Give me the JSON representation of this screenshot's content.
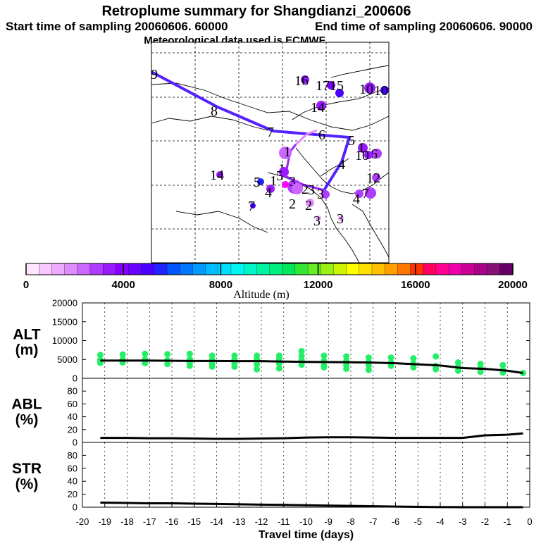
{
  "figure": {
    "title": "Retroplume summary for Shangdianzi_200606",
    "start_label": "Start time of sampling 20060606. 60000",
    "end_label": "End time of sampling 20060606. 90000",
    "met_label": "Meteorological data used is ECMWF"
  },
  "colorbar": {
    "title": "Altitude (m)",
    "min": 0,
    "max": 20000,
    "tick_labels": [
      "0",
      "4000",
      "8000",
      "12000",
      "16000",
      "20000"
    ],
    "colors": [
      "#ffe6ff",
      "#f7c8ff",
      "#eeaaff",
      "#e08cff",
      "#cc66ff",
      "#b03cff",
      "#9a1aff",
      "#8a00ff",
      "#6a00ff",
      "#4a00ff",
      "#2222ff",
      "#0055ff",
      "#0077ff",
      "#0099ff",
      "#00bbff",
      "#00dfff",
      "#00f5f0",
      "#00f5c8",
      "#00f5a0",
      "#00f080",
      "#00e85a",
      "#33e633",
      "#66ee22",
      "#99f011",
      "#ccf500",
      "#ffff00",
      "#ffe000",
      "#ffc000",
      "#ffa000",
      "#ff7700",
      "#ff3300",
      "#ff0060",
      "#ff0090",
      "#ee00aa",
      "#cc0099",
      "#aa0088",
      "#881177",
      "#660066"
    ]
  },
  "map": {
    "track_blue_labels": [
      "9",
      "8",
      "7",
      "6",
      "5",
      "4"
    ],
    "track_purple_labels": [
      "3",
      "2",
      "1"
    ],
    "cluster_labels": [
      {
        "text": "16",
        "color": "#8a1aff"
      },
      {
        "text": "14",
        "color": "#9a1aff"
      },
      {
        "text": "17",
        "color": "#7a00ff"
      },
      {
        "text": "15",
        "color": "#4a00ff"
      },
      {
        "text": "10",
        "color": "#9a1aff"
      },
      {
        "text": "10",
        "color": "#4a00ff"
      },
      {
        "text": "14",
        "color": "#9a1aff"
      },
      {
        "text": "1",
        "color": "#9a1aff"
      },
      {
        "text": "6",
        "color": "#b03cff"
      },
      {
        "text": "1",
        "color": "#cc66ff"
      },
      {
        "text": "10",
        "color": "#9a1aff"
      },
      {
        "text": "12",
        "color": "#b03cff"
      },
      {
        "text": "5",
        "color": "#2222ff"
      },
      {
        "text": "1",
        "color": "#9a1aff"
      },
      {
        "text": "4",
        "color": "#9a1aff"
      },
      {
        "text": "3",
        "color": "#b03cff"
      },
      {
        "text": "2",
        "color": "#e08cff"
      },
      {
        "text": "2",
        "color": "#cc66ff"
      },
      {
        "text": "3",
        "color": "#b03cff"
      },
      {
        "text": "4",
        "color": "#b03cff"
      },
      {
        "text": "7",
        "color": "#b03cff"
      },
      {
        "text": "7",
        "color": "#4a00ff"
      },
      {
        "text": "3",
        "color": "#eeaaff"
      },
      {
        "text": "3",
        "color": "#eeaaff"
      },
      {
        "text": "5",
        "color": "#ff00ff"
      }
    ]
  },
  "chart_data": [
    {
      "type": "scatter",
      "panel": "ALT",
      "ylabel": "ALT\n(m)",
      "ylabel_lines": [
        "ALT",
        "(m)"
      ],
      "xlabel": "",
      "xlim": [
        -20,
        0
      ],
      "ylim": [
        0,
        20000
      ],
      "yticks": [
        "0",
        "5000",
        "10000",
        "15000",
        "20000"
      ],
      "line": {
        "x": [
          -19.2,
          -18,
          -17,
          -16,
          -15,
          -14,
          -13,
          -12,
          -11,
          -10,
          -9,
          -8,
          -7,
          -6,
          -5,
          -4,
          -3,
          -2,
          -1,
          -0.3
        ],
        "y": [
          4700,
          4700,
          4700,
          4650,
          4600,
          4600,
          4550,
          4550,
          4450,
          4350,
          4300,
          4250,
          4150,
          4000,
          3700,
          3400,
          2700,
          2500,
          2000,
          1400
        ]
      },
      "points": [
        {
          "x": -19.2,
          "y": 6200
        },
        {
          "x": -19.2,
          "y": 4900
        },
        {
          "x": -19.2,
          "y": 4100
        },
        {
          "x": -18.2,
          "y": 6300
        },
        {
          "x": -18.2,
          "y": 5000
        },
        {
          "x": -18.2,
          "y": 4200
        },
        {
          "x": -17.2,
          "y": 6500
        },
        {
          "x": -17.2,
          "y": 5000
        },
        {
          "x": -17.2,
          "y": 4000
        },
        {
          "x": -16.2,
          "y": 6400
        },
        {
          "x": -16.2,
          "y": 4800
        },
        {
          "x": -16.2,
          "y": 3800
        },
        {
          "x": -15.2,
          "y": 6500
        },
        {
          "x": -15.2,
          "y": 5000
        },
        {
          "x": -15.2,
          "y": 4200
        },
        {
          "x": -15.2,
          "y": 3300
        },
        {
          "x": -14.2,
          "y": 6000
        },
        {
          "x": -14.2,
          "y": 4900
        },
        {
          "x": -14.2,
          "y": 3900
        },
        {
          "x": -14.2,
          "y": 3100
        },
        {
          "x": -13.2,
          "y": 6000
        },
        {
          "x": -13.2,
          "y": 4900
        },
        {
          "x": -13.2,
          "y": 4000
        },
        {
          "x": -13.2,
          "y": 3100
        },
        {
          "x": -12.2,
          "y": 6000
        },
        {
          "x": -12.2,
          "y": 5000
        },
        {
          "x": -12.2,
          "y": 3700
        },
        {
          "x": -12.2,
          "y": 2400
        },
        {
          "x": -11.2,
          "y": 6000
        },
        {
          "x": -11.2,
          "y": 5200
        },
        {
          "x": -11.2,
          "y": 3900
        },
        {
          "x": -11.2,
          "y": 2600
        },
        {
          "x": -10.2,
          "y": 5900
        },
        {
          "x": -10.2,
          "y": 4800
        },
        {
          "x": -10.2,
          "y": 3600
        },
        {
          "x": -10.2,
          "y": 7200
        },
        {
          "x": -9.2,
          "y": 6000
        },
        {
          "x": -9.2,
          "y": 4600
        },
        {
          "x": -9.2,
          "y": 3300
        },
        {
          "x": -9.2,
          "y": 2900
        },
        {
          "x": -8.2,
          "y": 5800
        },
        {
          "x": -8.2,
          "y": 4600
        },
        {
          "x": -8.2,
          "y": 3500
        },
        {
          "x": -8.2,
          "y": 2500
        },
        {
          "x": -7.2,
          "y": 5500
        },
        {
          "x": -7.2,
          "y": 4300
        },
        {
          "x": -7.2,
          "y": 3400
        },
        {
          "x": -7.2,
          "y": 2200
        },
        {
          "x": -6.2,
          "y": 5500
        },
        {
          "x": -6.2,
          "y": 4200
        },
        {
          "x": -6.2,
          "y": 3300
        },
        {
          "x": -5.2,
          "y": 5300
        },
        {
          "x": -5.2,
          "y": 3900
        },
        {
          "x": -5.2,
          "y": 2900
        },
        {
          "x": -4.2,
          "y": 5800
        },
        {
          "x": -4.2,
          "y": 3300
        },
        {
          "x": -4.2,
          "y": 2400
        },
        {
          "x": -3.2,
          "y": 4200
        },
        {
          "x": -3.2,
          "y": 3100
        },
        {
          "x": -3.2,
          "y": 2000
        },
        {
          "x": -2.2,
          "y": 3800
        },
        {
          "x": -2.2,
          "y": 2700
        },
        {
          "x": -2.2,
          "y": 1700
        },
        {
          "x": -1.2,
          "y": 3500
        },
        {
          "x": -1.2,
          "y": 2200
        },
        {
          "x": -1.2,
          "y": 1500
        },
        {
          "x": -0.3,
          "y": 1400
        }
      ]
    },
    {
      "type": "line",
      "panel": "ABL",
      "ylabel": "ABL\n(%)",
      "ylabel_lines": [
        "ABL",
        "(%)"
      ],
      "xlim": [
        -20,
        0
      ],
      "ylim": [
        0,
        100
      ],
      "yticks": [
        "0",
        "20",
        "40",
        "60",
        "80"
      ],
      "x": [
        -19.2,
        -18,
        -17,
        -16,
        -15,
        -14,
        -13,
        -12,
        -11,
        -10,
        -9,
        -8,
        -7,
        -6,
        -5,
        -4,
        -3,
        -2,
        -1,
        -0.3
      ],
      "values": [
        7,
        7,
        6.5,
        6.5,
        6,
        5.5,
        5.5,
        6,
        6.5,
        7.5,
        8,
        8,
        7.5,
        7,
        7,
        7,
        7,
        11,
        12,
        14
      ]
    },
    {
      "type": "line",
      "panel": "STR",
      "ylabel": "STR\n(%)",
      "ylabel_lines": [
        "STR",
        "(%)"
      ],
      "xlabel": "Travel time (days)",
      "xlim": [
        -20,
        0
      ],
      "ylim": [
        0,
        100
      ],
      "yticks": [
        "0",
        "20",
        "40",
        "60",
        "80"
      ],
      "xticks": [
        "-20",
        "-19",
        "-18",
        "-17",
        "-16",
        "-15",
        "-14",
        "-13",
        "-12",
        "-11",
        "-10",
        "-9",
        "-8",
        "-7",
        "-6",
        "-5",
        "-4",
        "-3",
        "-2",
        "-1",
        "0"
      ],
      "x": [
        -19.2,
        -18,
        -17,
        -16,
        -15,
        -14,
        -13,
        -12,
        -11,
        -10,
        -9,
        -8,
        -7,
        -6,
        -5,
        -4,
        -3,
        -2,
        -1,
        -0.3
      ],
      "values": [
        7,
        6.5,
        6,
        6,
        5.5,
        5,
        4.5,
        4,
        3.5,
        3,
        2.5,
        2,
        1.5,
        1,
        0.5,
        0.2,
        0,
        0,
        0,
        0
      ]
    }
  ]
}
